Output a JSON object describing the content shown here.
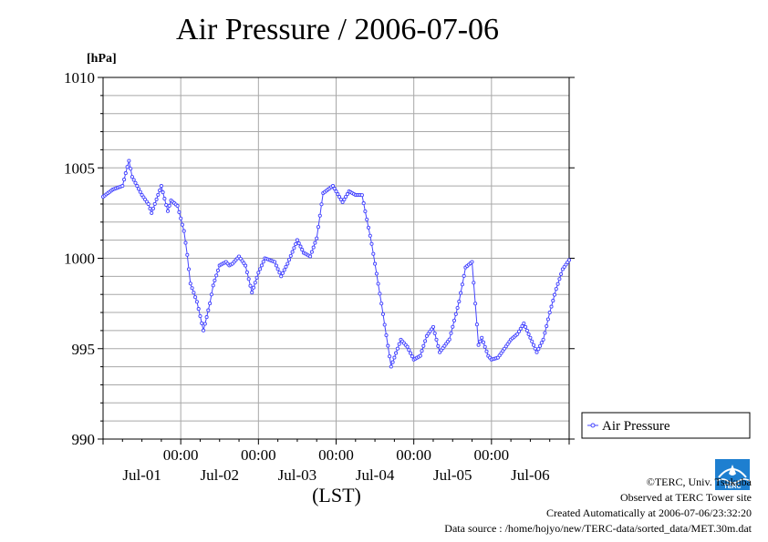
{
  "title": "Air Pressure / 2006-07-06",
  "colors": {
    "series": "#4444ff",
    "grid": "#a8a8a8",
    "axis": "#000000",
    "logo": "#1e7fd0"
  },
  "credits": {
    "line1": "©TERC, Univ. Tsukuba",
    "line2": "Observed at TERC Tower site",
    "line3": "Created Automatically at 2006-07-06/23:32:20",
    "line4": "Data source : /home/hojyo/new/TERC-data/sorted_data/MET.30m.dat",
    "logo_text": "TERC"
  },
  "chart_data": {
    "type": "line",
    "title": "Air Pressure / 2006-07-06",
    "ylabel": "[hPa]",
    "xlabel": "(LST)",
    "ylim": [
      990,
      1010
    ],
    "yticks": [
      990,
      995,
      1000,
      1005,
      1010
    ],
    "y_minor_step": 1,
    "xlim_days": [
      0,
      6
    ],
    "x_time_labels": [
      "00:00",
      "00:00",
      "00:00",
      "00:00",
      "00:00"
    ],
    "x_time_label_positions_days": [
      1,
      2,
      3,
      4,
      5
    ],
    "x_date_labels": [
      "Jul-01",
      "Jul-02",
      "Jul-03",
      "Jul-04",
      "Jul-05",
      "Jul-06"
    ],
    "x_date_label_positions_days": [
      0.5,
      1.5,
      2.5,
      3.5,
      4.5,
      5.5
    ],
    "grid": true,
    "legend_position": "right",
    "series": [
      {
        "name": "Air Pressure",
        "marker": "circle",
        "x_days": [
          0.0,
          0.125,
          0.25,
          0.333,
          0.375,
          0.5,
          0.583,
          0.625,
          0.708,
          0.75,
          0.833,
          0.875,
          0.958,
          1.0,
          1.042,
          1.083,
          1.125,
          1.208,
          1.292,
          1.375,
          1.417,
          1.5,
          1.583,
          1.625,
          1.667,
          1.75,
          1.833,
          1.917,
          2.0,
          2.083,
          2.208,
          2.292,
          2.375,
          2.5,
          2.583,
          2.667,
          2.75,
          2.833,
          2.958,
          3.083,
          3.167,
          3.25,
          3.333,
          3.458,
          3.583,
          3.708,
          3.833,
          3.917,
          4.0,
          4.083,
          4.167,
          4.25,
          4.333,
          4.458,
          4.583,
          4.667,
          4.75,
          4.833,
          4.875,
          4.958,
          5.0,
          5.083,
          5.167,
          5.25,
          5.333,
          5.417,
          5.5,
          5.583,
          5.667,
          5.75,
          5.833,
          5.917,
          6.0
        ],
        "values": [
          1003.4,
          1003.8,
          1004.0,
          1005.4,
          1004.5,
          1003.5,
          1003.0,
          1002.5,
          1003.5,
          1004.0,
          1002.6,
          1003.2,
          1002.9,
          1002.2,
          1001.5,
          1000.2,
          998.6,
          997.6,
          996.0,
          997.5,
          998.5,
          999.6,
          999.8,
          999.6,
          999.7,
          1000.1,
          999.6,
          998.1,
          999.2,
          1000.0,
          999.8,
          999.0,
          999.7,
          1001.0,
          1000.3,
          1000.1,
          1001.1,
          1003.6,
          1004.0,
          1003.1,
          1003.7,
          1003.5,
          1003.5,
          1000.8,
          997.5,
          994.0,
          995.5,
          995.1,
          994.4,
          994.6,
          995.7,
          996.2,
          994.8,
          995.5,
          997.6,
          999.5,
          999.8,
          995.2,
          995.6,
          994.6,
          994.4,
          994.5,
          995.0,
          995.5,
          995.8,
          996.4,
          995.6,
          994.8,
          995.5,
          997.0,
          998.3,
          999.4,
          999.9
        ]
      }
    ]
  }
}
